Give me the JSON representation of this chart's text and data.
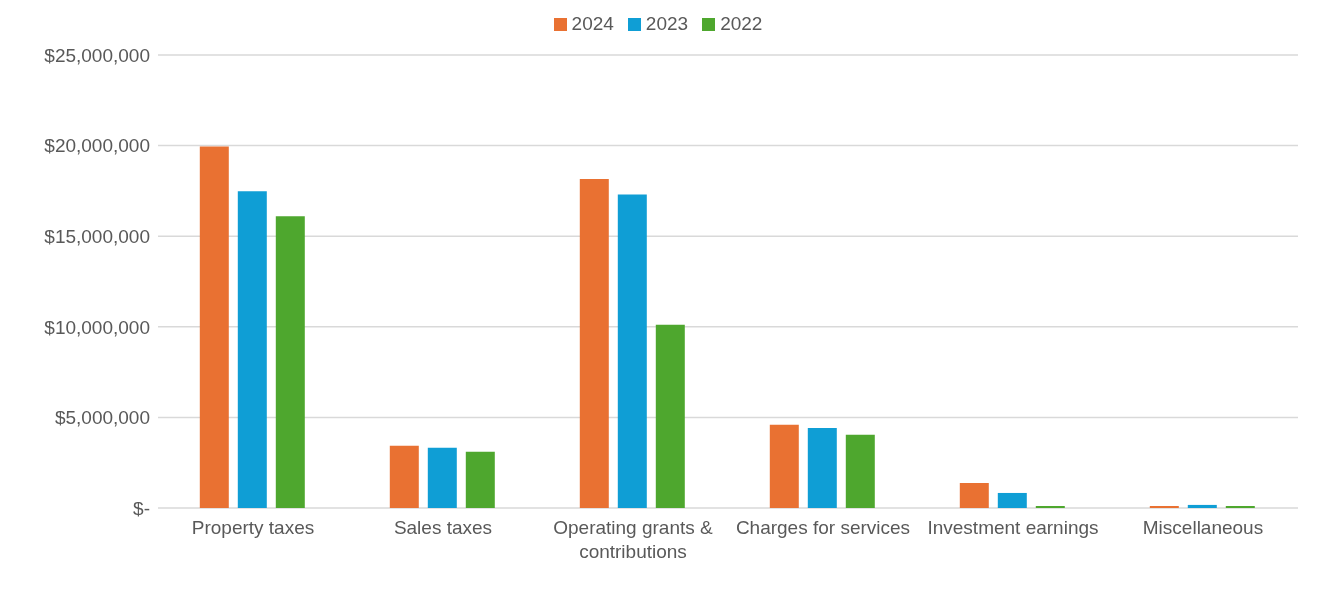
{
  "chart_data": {
    "type": "bar",
    "categories": [
      "Property taxes",
      "Sales taxes",
      "Operating grants & contributions",
      "Charges for services",
      "Investment earnings",
      "Miscellaneous"
    ],
    "series": [
      {
        "name": "2024",
        "color": "#e97132",
        "values": [
          19950000,
          3430000,
          18150000,
          4590000,
          1380000,
          110000
        ]
      },
      {
        "name": "2023",
        "color": "#0f9ed5",
        "values": [
          17480000,
          3320000,
          17300000,
          4420000,
          830000,
          170000
        ]
      },
      {
        "name": "2022",
        "color": "#4ea72e",
        "values": [
          16100000,
          3100000,
          10120000,
          4040000,
          110000,
          110000
        ]
      }
    ],
    "ylim": [
      0,
      25000000
    ],
    "yticks": [
      {
        "value": 0,
        "label": "$-"
      },
      {
        "value": 5000000,
        "label": "$5,000,000"
      },
      {
        "value": 10000000,
        "label": "$10,000,000"
      },
      {
        "value": 15000000,
        "label": "$15,000,000"
      },
      {
        "value": 20000000,
        "label": "$20,000,000"
      },
      {
        "value": 25000000,
        "label": "$25,000,000"
      }
    ],
    "grid": "y",
    "legend": "top"
  }
}
